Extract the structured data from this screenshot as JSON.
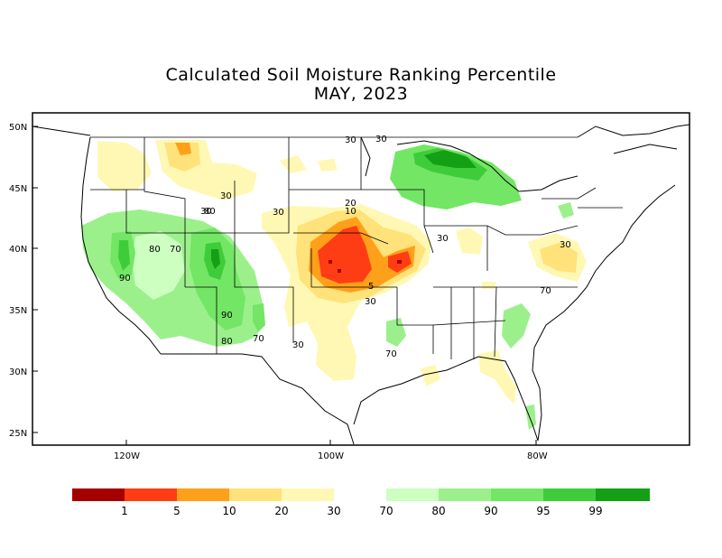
{
  "title": "Calculated Soil Moisture Ranking Percentile",
  "subtitle": "MAY, 2023",
  "map": {
    "lat_labels": [
      "50N",
      "45N",
      "40N",
      "35N",
      "30N",
      "25N"
    ],
    "lon_labels": [
      "120W",
      "100W",
      "80W"
    ],
    "contour_labels": [
      "30",
      "30",
      "30",
      "30",
      "20",
      "10",
      "80",
      "80",
      "70",
      "90",
      "90",
      "80",
      "70",
      "30",
      "5",
      "30",
      "30",
      "30",
      "30",
      "70",
      "70"
    ]
  },
  "legend": {
    "colors": [
      "#a50000",
      "#ff3d14",
      "#ffa01a",
      "#ffe27a",
      "#fff8b4",
      "#ccffc0",
      "#9cf08c",
      "#73e665",
      "#3fcc3a",
      "#14a014"
    ],
    "labels": [
      "1",
      "5",
      "10",
      "20",
      "30",
      "70",
      "80",
      "90",
      "95",
      "99"
    ]
  }
}
